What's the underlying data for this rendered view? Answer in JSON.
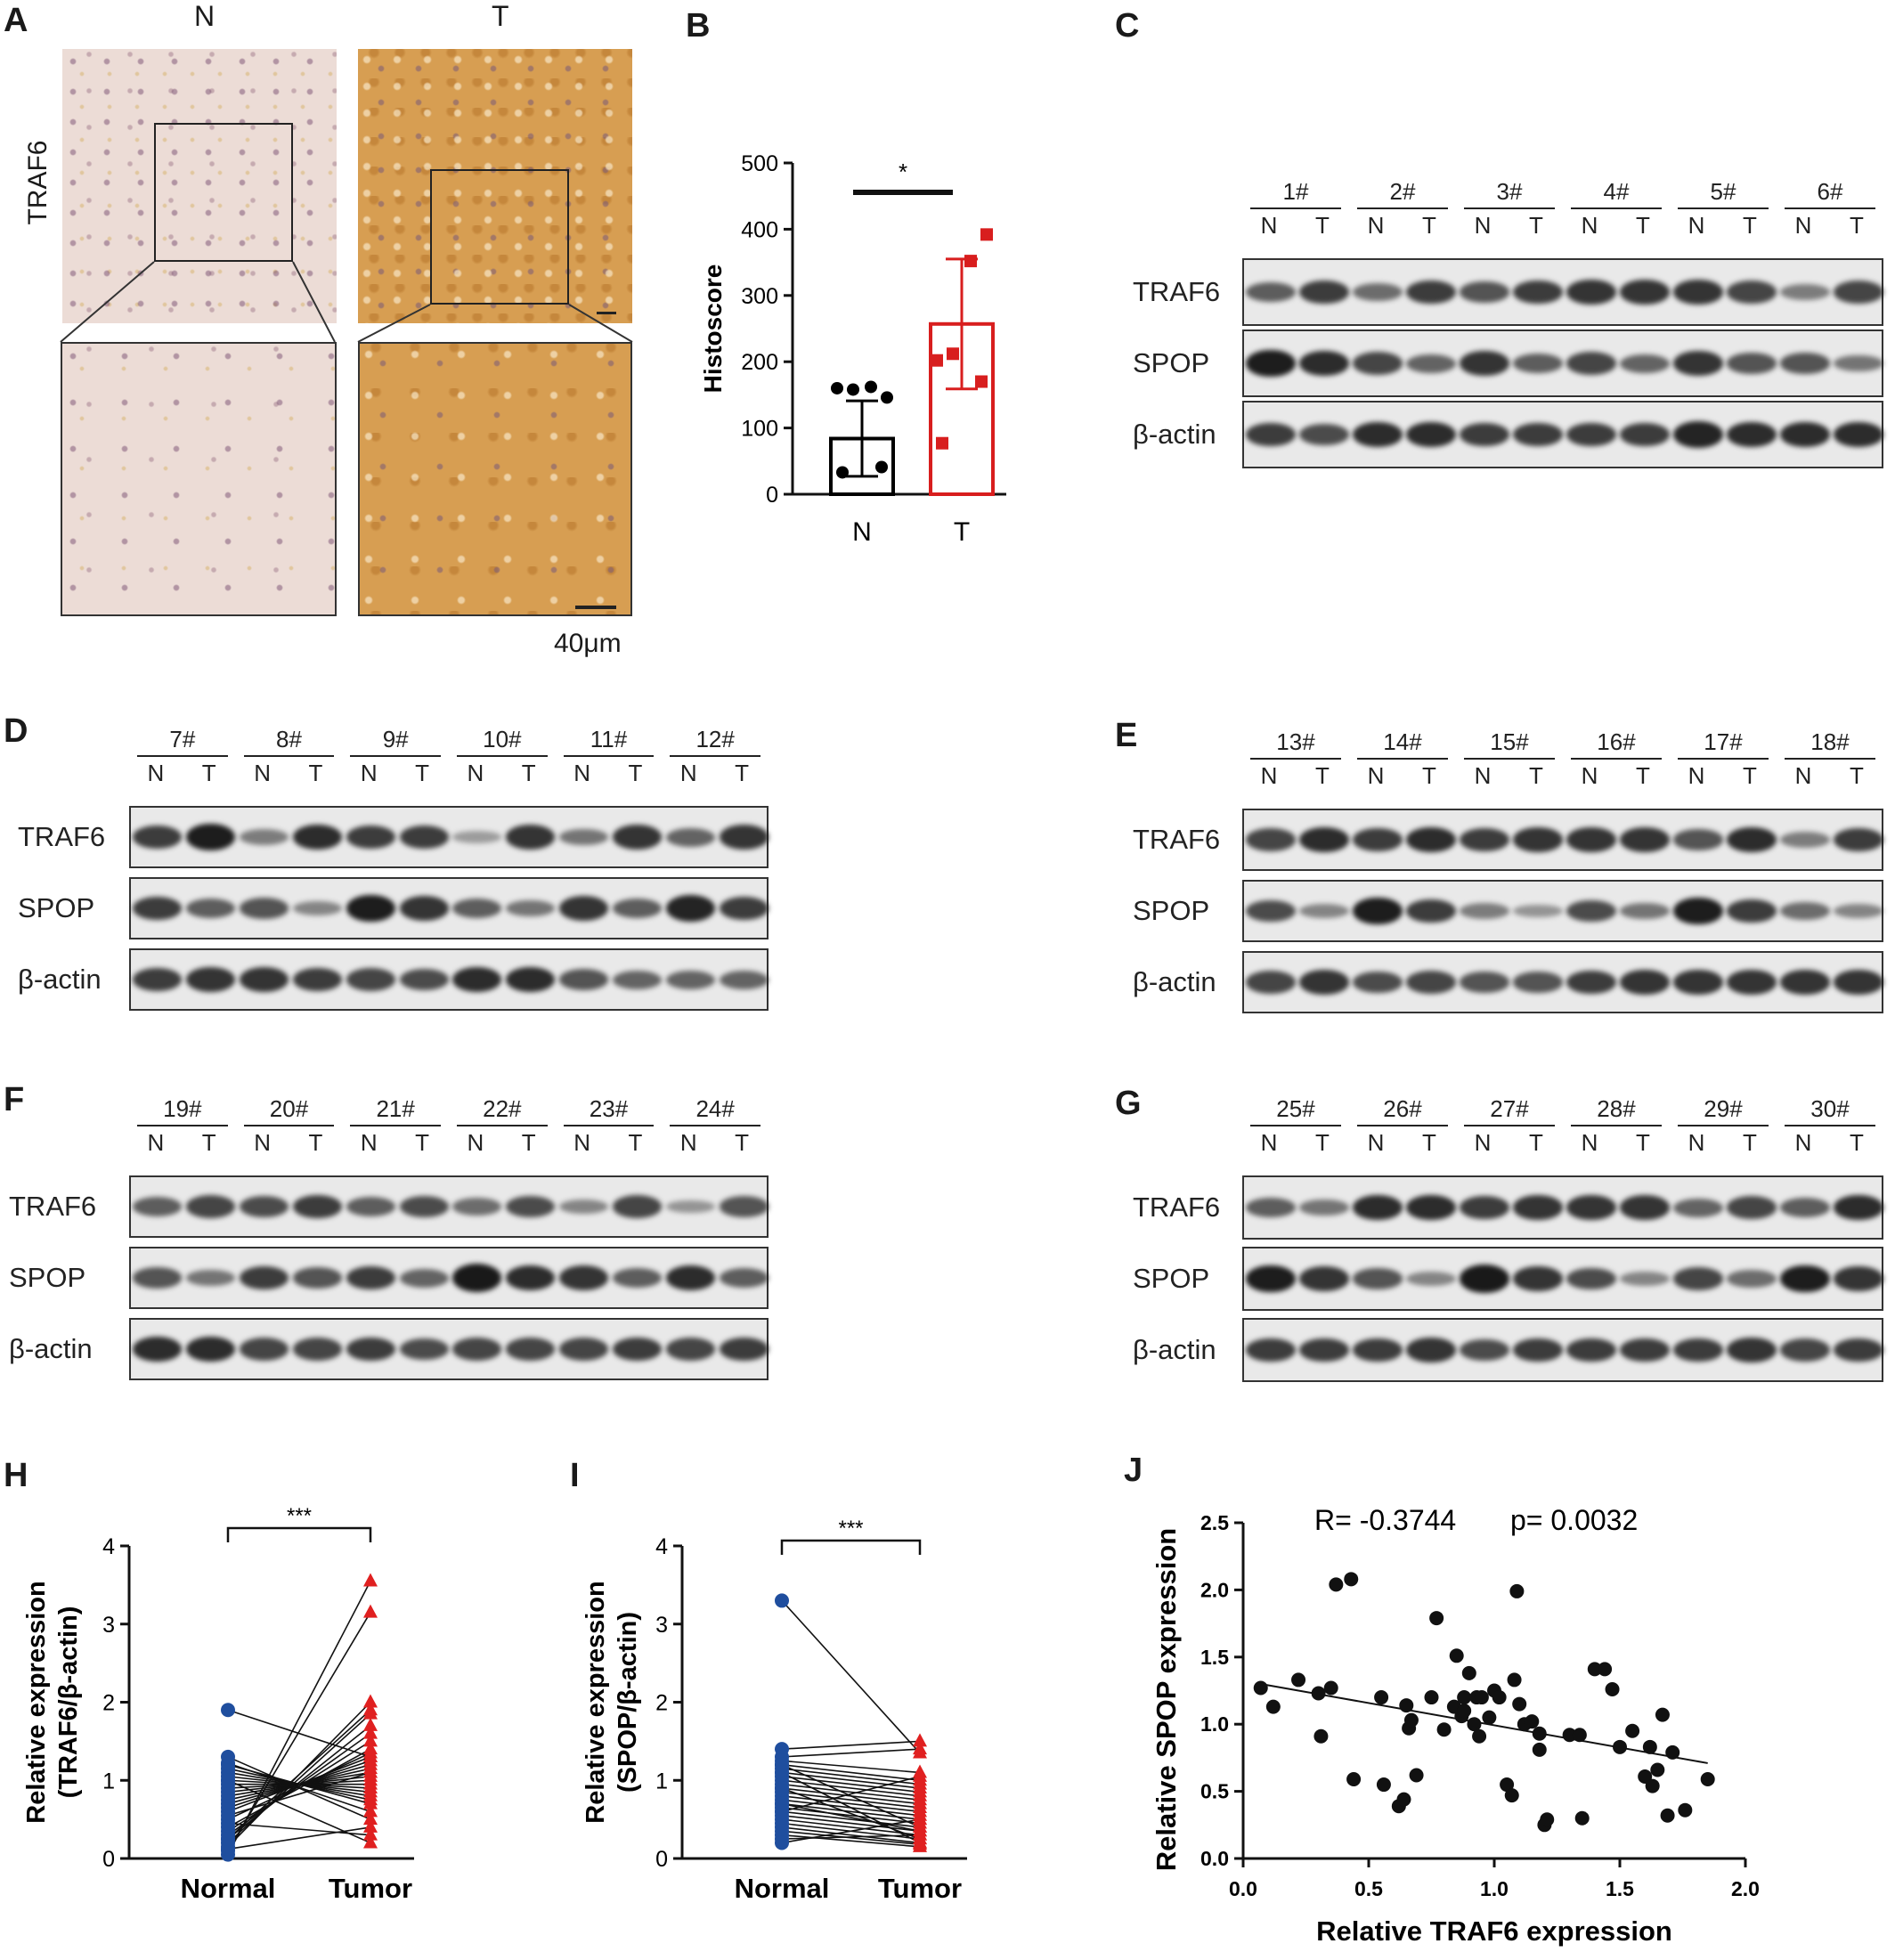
{
  "panels": {
    "A": "A",
    "B": "B",
    "C": "C",
    "D": "D",
    "E": "E",
    "F": "F",
    "G": "G",
    "H": "H",
    "I": "I",
    "J": "J"
  },
  "panel_a": {
    "col_left": "N",
    "col_right": "T",
    "row_label": "TRAF6",
    "scale_label": "40μm"
  },
  "blots": {
    "labels": [
      "TRAF6",
      "SPOP",
      "β-actin"
    ],
    "lane_n": "N",
    "lane_t": "T",
    "C": {
      "samples": [
        "1#",
        "2#",
        "3#",
        "4#",
        "5#",
        "6#"
      ],
      "intensity": {
        "TRAF6": [
          0.55,
          0.75,
          0.45,
          0.75,
          0.6,
          0.75,
          0.8,
          0.8,
          0.8,
          0.7,
          0.35,
          0.7
        ],
        "SPOP": [
          0.95,
          0.85,
          0.7,
          0.5,
          0.8,
          0.55,
          0.7,
          0.5,
          0.8,
          0.6,
          0.6,
          0.4
        ],
        "actin": [
          0.75,
          0.65,
          0.85,
          0.85,
          0.75,
          0.75,
          0.75,
          0.75,
          0.9,
          0.85,
          0.85,
          0.85
        ]
      }
    },
    "D": {
      "samples": [
        "7#",
        "8#",
        "9#",
        "10#",
        "11#",
        "12#"
      ],
      "intensity": {
        "TRAF6": [
          0.75,
          0.95,
          0.35,
          0.85,
          0.75,
          0.75,
          0.15,
          0.8,
          0.4,
          0.8,
          0.5,
          0.8
        ],
        "SPOP": [
          0.75,
          0.55,
          0.6,
          0.3,
          0.95,
          0.8,
          0.55,
          0.4,
          0.8,
          0.55,
          0.9,
          0.75
        ],
        "actin": [
          0.75,
          0.8,
          0.8,
          0.75,
          0.7,
          0.65,
          0.85,
          0.85,
          0.6,
          0.5,
          0.5,
          0.5
        ]
      }
    },
    "E": {
      "samples": [
        "13#",
        "14#",
        "15#",
        "16#",
        "17#",
        "18#"
      ],
      "intensity": {
        "TRAF6": [
          0.7,
          0.85,
          0.75,
          0.85,
          0.75,
          0.8,
          0.8,
          0.8,
          0.6,
          0.85,
          0.35,
          0.75
        ],
        "SPOP": [
          0.65,
          0.3,
          0.95,
          0.75,
          0.35,
          0.2,
          0.65,
          0.4,
          0.95,
          0.75,
          0.45,
          0.3
        ],
        "actin": [
          0.7,
          0.8,
          0.65,
          0.7,
          0.6,
          0.6,
          0.75,
          0.8,
          0.8,
          0.8,
          0.8,
          0.8
        ]
      }
    },
    "F": {
      "samples": [
        "19#",
        "20#",
        "21#",
        "22#",
        "23#",
        "24#"
      ],
      "intensity": {
        "TRAF6": [
          0.55,
          0.7,
          0.65,
          0.75,
          0.55,
          0.65,
          0.45,
          0.65,
          0.3,
          0.7,
          0.2,
          0.6
        ],
        "SPOP": [
          0.6,
          0.4,
          0.75,
          0.6,
          0.75,
          0.5,
          0.98,
          0.85,
          0.8,
          0.55,
          0.85,
          0.55
        ],
        "actin": [
          0.85,
          0.85,
          0.7,
          0.7,
          0.75,
          0.65,
          0.7,
          0.7,
          0.7,
          0.75,
          0.7,
          0.75
        ]
      }
    },
    "G": {
      "samples": [
        "25#",
        "26#",
        "27#",
        "28#",
        "29#",
        "30#"
      ],
      "intensity": {
        "TRAF6": [
          0.55,
          0.4,
          0.85,
          0.85,
          0.75,
          0.8,
          0.8,
          0.8,
          0.5,
          0.7,
          0.55,
          0.85
        ],
        "SPOP": [
          0.95,
          0.8,
          0.6,
          0.3,
          0.98,
          0.8,
          0.65,
          0.3,
          0.7,
          0.45,
          0.95,
          0.8
        ],
        "actin": [
          0.75,
          0.75,
          0.75,
          0.8,
          0.65,
          0.75,
          0.75,
          0.75,
          0.75,
          0.8,
          0.7,
          0.75
        ]
      }
    }
  },
  "chart_data": [
    {
      "id": "B",
      "type": "bar",
      "categories": [
        "N",
        "T"
      ],
      "values": [
        84,
        257
      ],
      "error": [
        57,
        98
      ],
      "points": [
        [
          33,
          41,
          160,
          158,
          162,
          146
        ],
        [
          77,
          170,
          202,
          212,
          352,
          392
        ]
      ],
      "ylabel": "Histoscore",
      "ylim": [
        0,
        500
      ],
      "yticks": [
        0,
        100,
        200,
        300,
        400,
        500
      ],
      "significance": "*",
      "colors": [
        "#000000",
        "#d81e1e"
      ]
    },
    {
      "id": "H",
      "type": "line",
      "categories": [
        "Normal",
        "Tumor"
      ],
      "pairs": [
        [
          0.05,
          3.55
        ],
        [
          0.1,
          3.15
        ],
        [
          0.15,
          2.0
        ],
        [
          0.2,
          1.85
        ],
        [
          0.25,
          1.7
        ],
        [
          0.3,
          1.6
        ],
        [
          0.35,
          1.5
        ],
        [
          0.4,
          1.4
        ],
        [
          0.5,
          1.35
        ],
        [
          0.6,
          1.3
        ],
        [
          0.65,
          1.25
        ],
        [
          0.7,
          1.2
        ],
        [
          0.75,
          1.15
        ],
        [
          0.8,
          1.1
        ],
        [
          0.85,
          1.05
        ],
        [
          0.9,
          1.0
        ],
        [
          0.95,
          0.95
        ],
        [
          1.0,
          0.9
        ],
        [
          1.05,
          0.85
        ],
        [
          1.1,
          0.8
        ],
        [
          1.15,
          0.75
        ],
        [
          1.2,
          0.7
        ],
        [
          1.22,
          0.6
        ],
        [
          1.9,
          1.3
        ],
        [
          1.3,
          0.5
        ],
        [
          0.12,
          0.4
        ],
        [
          0.45,
          0.3
        ],
        [
          1.0,
          0.2
        ],
        [
          0.25,
          1.9
        ],
        [
          0.55,
          1.1
        ]
      ],
      "ylabel": "Relative expression (TRAF6/β-actin)",
      "ylim": [
        0,
        4
      ],
      "yticks": [
        0,
        1,
        2,
        3,
        4
      ],
      "significance": "***",
      "colors": [
        "#1f4e9e",
        "#e02020"
      ]
    },
    {
      "id": "I",
      "type": "line",
      "categories": [
        "Normal",
        "Tumor"
      ],
      "pairs": [
        [
          3.3,
          1.35
        ],
        [
          1.4,
          1.5
        ],
        [
          1.3,
          1.4
        ],
        [
          1.25,
          1.1
        ],
        [
          1.2,
          1.0
        ],
        [
          1.15,
          0.95
        ],
        [
          1.1,
          0.9
        ],
        [
          1.05,
          0.85
        ],
        [
          1.0,
          0.8
        ],
        [
          0.95,
          0.75
        ],
        [
          0.9,
          0.7
        ],
        [
          0.85,
          0.65
        ],
        [
          0.8,
          0.6
        ],
        [
          0.75,
          0.55
        ],
        [
          0.7,
          0.5
        ],
        [
          0.65,
          0.45
        ],
        [
          0.6,
          0.4
        ],
        [
          0.55,
          0.35
        ],
        [
          0.5,
          0.3
        ],
        [
          0.45,
          0.25
        ],
        [
          0.4,
          0.2
        ],
        [
          0.35,
          0.18
        ],
        [
          0.3,
          0.15
        ],
        [
          0.25,
          0.3
        ],
        [
          0.2,
          0.5
        ],
        [
          1.1,
          0.2
        ],
        [
          0.9,
          0.25
        ],
        [
          0.7,
          0.35
        ],
        [
          1.2,
          0.4
        ],
        [
          0.6,
          1.05
        ]
      ],
      "ylabel": "Relative expression (SPOP/β-actin)",
      "ylim": [
        0,
        4
      ],
      "yticks": [
        0,
        1,
        2,
        3,
        4
      ],
      "significance": "***",
      "colors": [
        "#1f4e9e",
        "#e02020"
      ]
    },
    {
      "id": "J",
      "type": "scatter",
      "points": [
        [
          0.07,
          1.27
        ],
        [
          0.12,
          1.13
        ],
        [
          0.22,
          1.33
        ],
        [
          0.3,
          1.23
        ],
        [
          0.31,
          0.91
        ],
        [
          0.35,
          1.27
        ],
        [
          0.37,
          2.04
        ],
        [
          0.43,
          2.08
        ],
        [
          0.44,
          0.59
        ],
        [
          0.55,
          1.2
        ],
        [
          0.56,
          0.55
        ],
        [
          0.62,
          0.39
        ],
        [
          0.64,
          0.44
        ],
        [
          0.65,
          1.14
        ],
        [
          0.66,
          0.97
        ],
        [
          0.67,
          1.03
        ],
        [
          0.69,
          0.62
        ],
        [
          0.75,
          1.2
        ],
        [
          0.77,
          1.79
        ],
        [
          0.8,
          0.96
        ],
        [
          0.84,
          1.13
        ],
        [
          0.85,
          1.51
        ],
        [
          0.87,
          1.06
        ],
        [
          0.88,
          1.2
        ],
        [
          0.88,
          1.1
        ],
        [
          0.9,
          1.38
        ],
        [
          0.92,
          1.0
        ],
        [
          0.93,
          1.2
        ],
        [
          0.94,
          0.91
        ],
        [
          0.95,
          1.2
        ],
        [
          0.98,
          1.05
        ],
        [
          1.0,
          1.25
        ],
        [
          1.02,
          1.2
        ],
        [
          1.05,
          0.55
        ],
        [
          1.07,
          0.47
        ],
        [
          1.08,
          1.33
        ],
        [
          1.09,
          1.99
        ],
        [
          1.1,
          1.15
        ],
        [
          1.12,
          1.0
        ],
        [
          1.15,
          1.02
        ],
        [
          1.18,
          0.93
        ],
        [
          1.18,
          0.81
        ],
        [
          1.2,
          0.25
        ],
        [
          1.21,
          0.29
        ],
        [
          1.3,
          0.92
        ],
        [
          1.34,
          0.92
        ],
        [
          1.35,
          0.3
        ],
        [
          1.4,
          1.41
        ],
        [
          1.44,
          1.41
        ],
        [
          1.47,
          1.26
        ],
        [
          1.5,
          0.83
        ],
        [
          1.55,
          0.95
        ],
        [
          1.6,
          0.61
        ],
        [
          1.62,
          0.83
        ],
        [
          1.63,
          0.54
        ],
        [
          1.65,
          0.66
        ],
        [
          1.67,
          1.07
        ],
        [
          1.69,
          0.32
        ],
        [
          1.71,
          0.79
        ],
        [
          1.76,
          0.36
        ],
        [
          1.85,
          0.59
        ]
      ],
      "fit": [
        [
          0.07,
          1.3
        ],
        [
          1.85,
          0.71
        ]
      ],
      "xlabel": "Relative TRAF6 expression",
      "ylabel": "Relative SPOP expression",
      "xlim": [
        0,
        2
      ],
      "ylim": [
        0,
        2.5
      ],
      "xticks": [
        "0.0",
        "0.5",
        "1.0",
        "1.5",
        "2.0"
      ],
      "yticks": [
        "0.0",
        "0.5",
        "1.0",
        "1.5",
        "2.0",
        "2.5"
      ],
      "annotation_r": "R= -0.3744",
      "annotation_p": "p= 0.0032"
    }
  ]
}
